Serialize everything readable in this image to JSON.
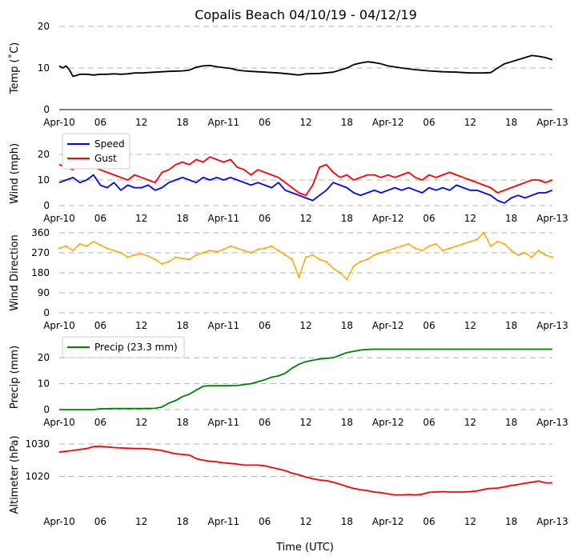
{
  "chart_data": {
    "title": "Copalis Beach 04/10/19 - 04/12/19",
    "xlabel": "Time (UTC)",
    "x_ticks_hours": [
      0,
      6,
      12,
      18,
      24,
      30,
      36,
      42,
      48,
      54,
      60,
      66,
      72
    ],
    "x_tick_labels": [
      "Apr-10",
      "06",
      "12",
      "18",
      "Apr-11",
      "06",
      "12",
      "18",
      "Apr-12",
      "06",
      "12",
      "18",
      "Apr-13"
    ],
    "x_range_hours": [
      0,
      72
    ],
    "panels": [
      {
        "type": "line",
        "ylabel": "Temp (˚C)",
        "ylim": [
          0,
          20
        ],
        "yticks": [
          0,
          10,
          20
        ],
        "series": [
          {
            "name": "Temp",
            "color": "#000000",
            "x": [
              0,
              0.5,
              1,
              1.5,
              2,
              2.5,
              3,
              4,
              5,
              6,
              7,
              8,
              9,
              10,
              11,
              12,
              14,
              16,
              18,
              19,
              20,
              21,
              22,
              23,
              24,
              25,
              26,
              27,
              28,
              30,
              32,
              34,
              35,
              36,
              38,
              40,
              42,
              43,
              44,
              45,
              46,
              47,
              48,
              50,
              52,
              54,
              56,
              58,
              60,
              62,
              63,
              64,
              65,
              66,
              67,
              68,
              69,
              70,
              71,
              72
            ],
            "y": [
              10.5,
              10,
              10.5,
              9.5,
              8,
              8.2,
              8.5,
              8.5,
              8.3,
              8.5,
              8.5,
              8.6,
              8.5,
              8.6,
              8.8,
              8.8,
              9.0,
              9.2,
              9.3,
              9.5,
              10.2,
              10.5,
              10.6,
              10.3,
              10.1,
              9.9,
              9.5,
              9.3,
              9.2,
              9.0,
              8.8,
              8.5,
              8.3,
              8.6,
              8.7,
              9.0,
              10.0,
              10.8,
              11.2,
              11.5,
              11.3,
              11.0,
              10.5,
              10.0,
              9.6,
              9.3,
              9.1,
              9.0,
              8.8,
              8.8,
              8.9,
              10.0,
              11.0,
              11.5,
              12.0,
              12.5,
              13.0,
              12.8,
              12.5,
              12.0
            ]
          }
        ]
      },
      {
        "type": "line",
        "ylabel": "Wind (mph)",
        "ylim": [
          0,
          25
        ],
        "yticks": [
          0,
          10,
          20
        ],
        "legend": "top-left",
        "series": [
          {
            "name": "Speed",
            "color": "#0000ff",
            "x": [
              0,
              1,
              2,
              3,
              4,
              5,
              6,
              7,
              8,
              9,
              10,
              11,
              12,
              13,
              14,
              15,
              16,
              17,
              18,
              19,
              20,
              21,
              22,
              23,
              24,
              25,
              26,
              27,
              28,
              29,
              30,
              31,
              32,
              33,
              34,
              35,
              36,
              37,
              38,
              39,
              40,
              41,
              42,
              43,
              44,
              45,
              46,
              47,
              48,
              49,
              50,
              51,
              52,
              53,
              54,
              55,
              56,
              57,
              58,
              59,
              60,
              61,
              62,
              63,
              64,
              65,
              66,
              67,
              68,
              69,
              70,
              71,
              72
            ],
            "y": [
              9,
              10,
              11,
              9,
              10,
              12,
              8,
              7,
              9,
              6,
              8,
              7,
              7,
              8,
              6,
              7,
              9,
              10,
              11,
              10,
              9,
              11,
              10,
              11,
              10,
              11,
              10,
              9,
              8,
              9,
              8,
              7,
              9,
              6,
              5,
              4,
              3,
              2,
              4,
              6,
              9,
              8,
              7,
              5,
              4,
              5,
              6,
              5,
              6,
              7,
              6,
              7,
              6,
              5,
              7,
              6,
              7,
              6,
              8,
              7,
              6,
              6,
              5,
              4,
              2,
              1,
              3,
              4,
              3,
              4,
              5,
              5,
              6
            ]
          },
          {
            "name": "Gust",
            "color": "#ff0000",
            "x": [
              0,
              1,
              2,
              3,
              4,
              5,
              6,
              7,
              8,
              9,
              10,
              11,
              12,
              13,
              14,
              15,
              16,
              17,
              18,
              19,
              20,
              21,
              22,
              23,
              24,
              25,
              26,
              27,
              28,
              29,
              30,
              31,
              32,
              33,
              34,
              35,
              36,
              37,
              38,
              39,
              40,
              41,
              42,
              43,
              44,
              45,
              46,
              47,
              48,
              49,
              50,
              51,
              52,
              53,
              54,
              55,
              56,
              57,
              58,
              59,
              60,
              61,
              62,
              63,
              64,
              65,
              66,
              67,
              68,
              69,
              70,
              71,
              72
            ],
            "y": [
              16,
              15,
              14,
              17,
              16,
              15,
              14,
              13,
              12,
              11,
              10,
              12,
              11,
              10,
              9,
              13,
              14,
              16,
              17,
              16,
              18,
              17,
              19,
              18,
              17,
              18,
              15,
              14,
              12,
              14,
              13,
              12,
              11,
              9,
              7,
              5,
              4,
              8,
              15,
              16,
              13,
              11,
              12,
              10,
              11,
              12,
              12,
              11,
              12,
              11,
              12,
              13,
              11,
              10,
              12,
              11,
              12,
              13,
              12,
              11,
              10,
              9,
              8,
              7,
              5,
              6,
              7,
              8,
              9,
              10,
              10,
              9,
              10
            ]
          }
        ]
      },
      {
        "type": "scatter",
        "ylabel": "Wind Direction",
        "ylim": [
          0,
          360
        ],
        "yticks": [
          0,
          90,
          180,
          270,
          360
        ],
        "series": [
          {
            "name": "Direction",
            "color": "#ffa500",
            "x": [
              0,
              1,
              2,
              3,
              4,
              5,
              6,
              7,
              8,
              9,
              10,
              11,
              12,
              13,
              14,
              15,
              16,
              17,
              18,
              19,
              20,
              21,
              22,
              23,
              24,
              25,
              26,
              27,
              28,
              29,
              30,
              31,
              32,
              33,
              34,
              35,
              36,
              37,
              38,
              39,
              40,
              41,
              42,
              43,
              44,
              45,
              46,
              47,
              48,
              49,
              50,
              51,
              52,
              53,
              54,
              55,
              56,
              57,
              58,
              59,
              60,
              61,
              62,
              63,
              64,
              65,
              66,
              67,
              68,
              69,
              70,
              71,
              72
            ],
            "y": [
              290,
              300,
              280,
              310,
              300,
              320,
              305,
              290,
              280,
              270,
              250,
              260,
              265,
              255,
              240,
              220,
              230,
              250,
              245,
              240,
              260,
              270,
              280,
              275,
              285,
              300,
              290,
              280,
              270,
              285,
              290,
              300,
              280,
              260,
              240,
              160,
              250,
              260,
              240,
              230,
              200,
              180,
              150,
              210,
              230,
              240,
              260,
              270,
              280,
              290,
              300,
              310,
              290,
              280,
              300,
              310,
              280,
              290,
              300,
              310,
              320,
              330,
              360,
              300,
              320,
              310,
              280,
              260,
              270,
              250,
              280,
              260,
              250
            ]
          }
        ]
      },
      {
        "type": "line",
        "ylabel": "Precip (mm)",
        "ylim": [
          0,
          25
        ],
        "yticks": [
          0,
          10,
          20
        ],
        "legend": "top-left",
        "series": [
          {
            "name": "Precip (23.3 mm)",
            "color": "#008000",
            "x": [
              0,
              2,
              4,
              5,
              6,
              8,
              10,
              12,
              14,
              15,
              16,
              17,
              18,
              19,
              20,
              21,
              22,
              24,
              26,
              28,
              30,
              31,
              32,
              33,
              34,
              35,
              36,
              37,
              38,
              39,
              40,
              41,
              42,
              43,
              44,
              45,
              46,
              48,
              52,
              56,
              60,
              64,
              68,
              72
            ],
            "y": [
              0,
              0,
              0,
              0,
              0.3,
              0.4,
              0.4,
              0.4,
              0.5,
              1.0,
              2.5,
              3.5,
              5.0,
              6.0,
              7.5,
              9.0,
              9.2,
              9.2,
              9.3,
              10.0,
              11.5,
              12.5,
              13.0,
              14.0,
              16.0,
              17.5,
              18.5,
              19.0,
              19.5,
              19.8,
              20.0,
              21.0,
              22.0,
              22.5,
              23.0,
              23.2,
              23.3,
              23.3,
              23.3,
              23.3,
              23.3,
              23.3,
              23.3,
              23.3
            ]
          }
        ]
      },
      {
        "type": "line",
        "ylabel": "Altimeter (hPa)",
        "ylim": [
          1010,
          1031
        ],
        "yticks": [
          1020,
          1030
        ],
        "series": [
          {
            "name": "Altimeter",
            "color": "#ff0000",
            "x": [
              0,
              1,
              2,
              3,
              4,
              5,
              6,
              7,
              8,
              9,
              10,
              11,
              12,
              13,
              14,
              15,
              16,
              17,
              18,
              19,
              20,
              21,
              22,
              23,
              24,
              25,
              26,
              27,
              28,
              29,
              30,
              31,
              32,
              33,
              34,
              35,
              36,
              37,
              38,
              39,
              40,
              41,
              42,
              43,
              44,
              45,
              46,
              47,
              48,
              49,
              50,
              51,
              52,
              53,
              54,
              55,
              56,
              57,
              58,
              59,
              60,
              61,
              62,
              63,
              64,
              65,
              66,
              67,
              68,
              69,
              70,
              71,
              72
            ],
            "y": [
              1027.5,
              1027.8,
              1028.0,
              1028.3,
              1028.6,
              1029.2,
              1029.3,
              1029.1,
              1028.9,
              1028.8,
              1028.7,
              1028.6,
              1028.6,
              1028.5,
              1028.3,
              1028.0,
              1027.5,
              1027.0,
              1026.8,
              1026.6,
              1025.5,
              1025.0,
              1024.7,
              1024.5,
              1024.2,
              1024.0,
              1023.8,
              1023.5,
              1023.5,
              1023.5,
              1023.3,
              1022.8,
              1022.3,
              1021.8,
              1021.0,
              1020.5,
              1019.8,
              1019.3,
              1018.9,
              1018.7,
              1018.2,
              1017.6,
              1016.9,
              1016.3,
              1015.9,
              1015.6,
              1015.2,
              1015.0,
              1014.6,
              1014.3,
              1014.3,
              1014.4,
              1014.3,
              1014.5,
              1015.1,
              1015.2,
              1015.3,
              1015.2,
              1015.2,
              1015.2,
              1015.3,
              1015.5,
              1016.0,
              1016.3,
              1016.4,
              1016.8,
              1017.2,
              1017.5,
              1017.9,
              1018.2,
              1018.6,
              1018.0,
              1018.0
            ]
          }
        ]
      }
    ]
  }
}
